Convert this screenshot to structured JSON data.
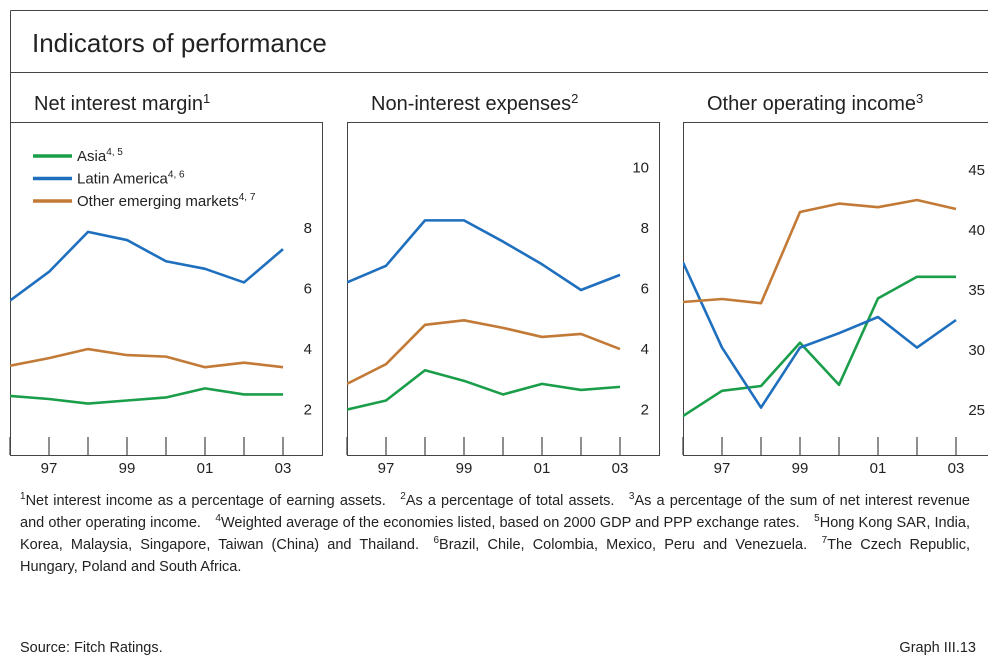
{
  "title": "Indicators of performance",
  "chart_data": [
    {
      "type": "line",
      "title": "Net interest margin",
      "title_sup": "1",
      "x": [
        1996,
        1997,
        1998,
        1999,
        2000,
        2001,
        2002,
        2003
      ],
      "xlim": [
        1996,
        2004
      ],
      "xticks": [
        {
          "value": 1997,
          "label": "97"
        },
        {
          "value": 1999,
          "label": "99"
        },
        {
          "value": 2001,
          "label": "01"
        },
        {
          "value": 2003,
          "label": "03"
        }
      ],
      "x_minor_ticks": [
        1996,
        1998,
        2000,
        2002
      ],
      "ylim": [
        0.5,
        11.5
      ],
      "yticks": [
        2,
        4,
        6,
        8
      ],
      "legend": "upper left",
      "series": [
        {
          "name": "Asia",
          "name_sup": "4, 5",
          "color": "#1a9e4a",
          "values": [
            2.45,
            2.35,
            2.2,
            2.3,
            2.4,
            2.7,
            2.5,
            2.5
          ]
        },
        {
          "name": "Latin America",
          "name_sup": "4, 6",
          "color": "#1f6fbf",
          "values": [
            5.6,
            6.55,
            7.87,
            7.6,
            6.9,
            6.65,
            6.2,
            7.3
          ]
        },
        {
          "name": "Other emerging markets",
          "name_sup": "4, 7",
          "color": "#c27a36",
          "values": [
            3.45,
            3.7,
            4.0,
            3.8,
            3.75,
            3.4,
            3.55,
            3.4
          ]
        }
      ]
    },
    {
      "type": "line",
      "title": "Non-interest expenses",
      "title_sup": "2",
      "x": [
        1996,
        1997,
        1998,
        1999,
        2000,
        2001,
        2002,
        2003
      ],
      "xlim": [
        1996,
        2004
      ],
      "xticks": [
        {
          "value": 1997,
          "label": "97"
        },
        {
          "value": 1999,
          "label": "99"
        },
        {
          "value": 2001,
          "label": "01"
        },
        {
          "value": 2003,
          "label": "03"
        }
      ],
      "x_minor_ticks": [
        1996,
        1998,
        2000,
        2002
      ],
      "ylim": [
        0.5,
        11.5
      ],
      "yticks": [
        2,
        4,
        6,
        8,
        10
      ],
      "series": [
        {
          "color": "#1a9e4a",
          "values": [
            2.0,
            2.3,
            3.3,
            2.95,
            2.5,
            2.85,
            2.65,
            2.75
          ]
        },
        {
          "color": "#1f6fbf",
          "values": [
            6.2,
            6.75,
            8.25,
            8.25,
            7.55,
            6.8,
            5.95,
            6.45
          ]
        },
        {
          "color": "#c27a36",
          "values": [
            2.85,
            3.5,
            4.8,
            4.95,
            4.7,
            4.4,
            4.5,
            4.0
          ]
        }
      ]
    },
    {
      "type": "line",
      "title": "Other operating income",
      "title_sup": "3",
      "x": [
        1996,
        1997,
        1998,
        1999,
        2000,
        2001,
        2002,
        2003
      ],
      "xlim": [
        1996,
        2004
      ],
      "xticks": [
        {
          "value": 1997,
          "label": "97"
        },
        {
          "value": 1999,
          "label": "99"
        },
        {
          "value": 2001,
          "label": "01"
        },
        {
          "value": 2003,
          "label": "03"
        }
      ],
      "x_minor_ticks": [
        1996,
        1998,
        2000,
        2002
      ],
      "ylim": [
        21.25,
        49
      ],
      "yticks": [
        25,
        30,
        35,
        40,
        45
      ],
      "series": [
        {
          "color": "#1a9e4a",
          "values": [
            24.5,
            26.6,
            27.0,
            30.6,
            27.1,
            34.3,
            36.1,
            36.1
          ]
        },
        {
          "color": "#1f6fbf",
          "values": [
            37.3,
            30.2,
            25.2,
            30.2,
            31.4,
            32.75,
            30.2,
            32.5
          ]
        },
        {
          "color": "#c27a36",
          "values": [
            34.0,
            34.25,
            33.9,
            41.5,
            42.2,
            41.9,
            42.5,
            41.75
          ]
        }
      ]
    }
  ],
  "footnotes": [
    {
      "mark": "1",
      "text": "Net interest income as a percentage of earning assets."
    },
    {
      "mark": "2",
      "text": "As a percentage of total assets."
    },
    {
      "mark": "3",
      "text": "As a percentage of the sum of net interest revenue and other operating income."
    },
    {
      "mark": "4",
      "text": "Weighted average of the economies listed, based on 2000 GDP and PPP exchange rates."
    },
    {
      "mark": "5",
      "text": "Hong Kong SAR, India, Korea, Malaysia, Singapore, Taiwan (China) and Thailand."
    },
    {
      "mark": "6",
      "text": "Brazil, Chile, Colombia, Mexico, Peru and Venezuela."
    },
    {
      "mark": "7",
      "text": "The Czech Republic, Hungary, Poland and South Africa."
    }
  ],
  "source": "Source: Fitch Ratings.",
  "graph_label": "Graph III.13"
}
